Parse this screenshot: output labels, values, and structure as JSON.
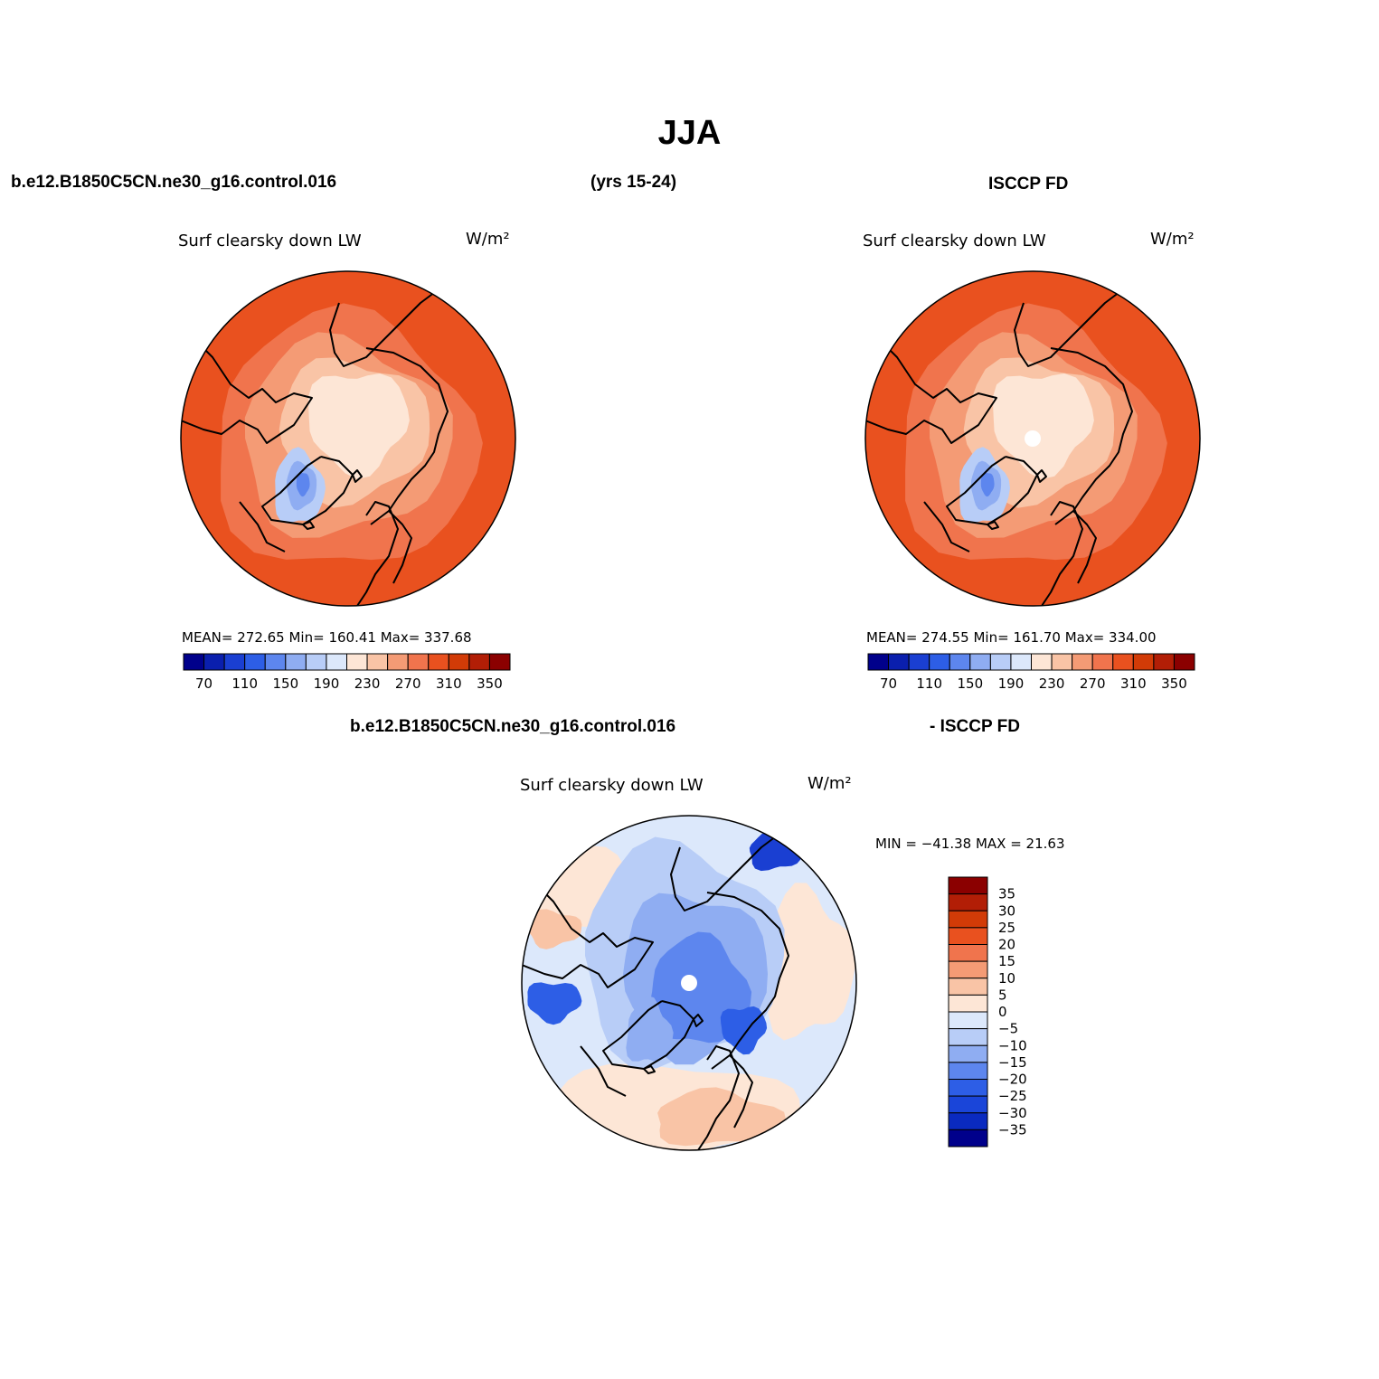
{
  "figure": {
    "title": "JJA",
    "case_name": "b.e12.B1850C5CN.ne30_g16.control.016",
    "years": "(yrs 15-24)",
    "obs_name": "ISCCP FD",
    "diff_case": "b.e12.B1850C5CN.ne30_g16.control.016",
    "diff_obs": "- ISCCP FD"
  },
  "panels": {
    "model": {
      "variable": "Surf clearsky down LW",
      "units": "W/m²",
      "stats": "MEAN= 272.65   Min= 160.41   Max= 337.68"
    },
    "obs": {
      "variable": "Surf clearsky down LW",
      "units": "W/m²",
      "stats": "MEAN= 274.55   Min= 161.70   Max= 334.00"
    },
    "diff": {
      "variable": "Surf clearsky down LW",
      "units": "W/m²",
      "stats": "MIN = −41.38 MAX =  21.63"
    }
  },
  "colorbar_abs": {
    "colors": [
      "#00008b",
      "#0a1fae",
      "#1a3fd2",
      "#2d5ee6",
      "#5d86ee",
      "#8fadf2",
      "#b8cdf7",
      "#dce8fb",
      "#fde6d6",
      "#f9c4a6",
      "#f49b75",
      "#f0744d",
      "#e9511f",
      "#d23b07",
      "#b21e06",
      "#8b0000"
    ],
    "tick_labels": [
      "70",
      "110",
      "150",
      "190",
      "230",
      "270",
      "310",
      "350"
    ]
  },
  "colorbar_diff": {
    "colors": [
      "#00008b",
      "#0a2ac0",
      "#1a45d9",
      "#2d5ee6",
      "#5d86ee",
      "#8fadf2",
      "#b8cdf7",
      "#dce8fb",
      "#fde6d6",
      "#f9c4a6",
      "#f49b75",
      "#f0744d",
      "#e9511f",
      "#d23b07",
      "#b21e06",
      "#8b0000"
    ],
    "tick_labels": [
      "35",
      "30",
      "25",
      "20",
      "15",
      "10",
      "5",
      "0",
      "−5",
      "−10",
      "−15",
      "−20",
      "−25",
      "−30",
      "−35"
    ]
  },
  "map_colors": {
    "abs": {
      "outer": "#e9511f",
      "ring2": "#f0744d",
      "ring3": "#f49b75",
      "ring4": "#f9c4a6",
      "center": "#fde6d6",
      "greenland1": "#b8cdf7",
      "greenland2": "#8fadf2",
      "greenland3": "#5d86ee"
    },
    "diff": {
      "base": "#dce8fb",
      "warm1": "#fde6d6",
      "warm2": "#f9c4a6",
      "cool1": "#b8cdf7",
      "cool2": "#8fadf2",
      "cool3": "#5d86ee",
      "cool4": "#2d5ee6",
      "cool5": "#1a3fd2"
    }
  }
}
